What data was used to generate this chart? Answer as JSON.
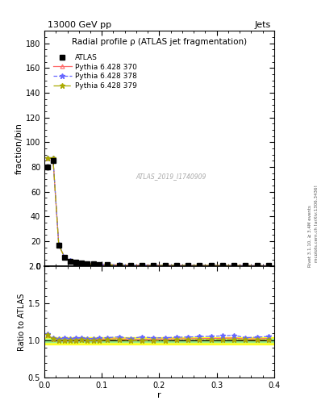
{
  "title_top": "13000 GeV pp",
  "title_top_right": "Jets",
  "title_main": "Radial profile ρ (ATLAS jet fragmentation)",
  "watermark": "ATLAS_2019_I1740909",
  "right_label": "mcplots.cern.ch [arXiv:1306.3436]",
  "right_label2": "Rivet 3.1.10, ≥ 3.4M events",
  "ylabel_main": "fraction/bin",
  "ylabel_ratio": "Ratio to ATLAS",
  "xlabel": "r",
  "xlim": [
    0.0,
    0.4
  ],
  "ylim_main": [
    0,
    190
  ],
  "ylim_ratio": [
    0.5,
    2.0
  ],
  "r_values": [
    0.005,
    0.015,
    0.025,
    0.035,
    0.045,
    0.055,
    0.065,
    0.075,
    0.085,
    0.095,
    0.11,
    0.13,
    0.15,
    0.17,
    0.19,
    0.21,
    0.23,
    0.25,
    0.27,
    0.29,
    0.31,
    0.33,
    0.35,
    0.37,
    0.39
  ],
  "atlas_values": [
    80,
    85,
    17,
    7,
    4,
    3,
    2.2,
    1.8,
    1.5,
    1.2,
    1.0,
    0.8,
    0.7,
    0.6,
    0.55,
    0.5,
    0.45,
    0.42,
    0.38,
    0.35,
    0.32,
    0.28,
    0.25,
    0.22,
    0.18
  ],
  "atlas_errors": [
    2.5,
    2.5,
    0.8,
    0.4,
    0.25,
    0.18,
    0.12,
    0.1,
    0.09,
    0.08,
    0.07,
    0.06,
    0.055,
    0.05,
    0.045,
    0.04,
    0.038,
    0.035,
    0.032,
    0.03,
    0.028,
    0.025,
    0.022,
    0.02,
    0.016
  ],
  "pythia370_values": [
    87,
    87,
    17.2,
    7.1,
    4.05,
    3.05,
    2.25,
    1.82,
    1.52,
    1.22,
    1.02,
    0.82,
    0.71,
    0.61,
    0.56,
    0.51,
    0.46,
    0.43,
    0.39,
    0.36,
    0.33,
    0.29,
    0.255,
    0.225,
    0.185
  ],
  "pythia378_values": [
    87.5,
    87.5,
    17.4,
    7.2,
    4.1,
    3.1,
    2.28,
    1.85,
    1.54,
    1.24,
    1.04,
    0.84,
    0.72,
    0.63,
    0.57,
    0.52,
    0.47,
    0.44,
    0.4,
    0.37,
    0.34,
    0.3,
    0.26,
    0.23,
    0.19
  ],
  "pythia379_values": [
    87,
    87,
    17.1,
    7.05,
    4.02,
    3.02,
    2.23,
    1.8,
    1.5,
    1.2,
    1.01,
    0.81,
    0.7,
    0.6,
    0.55,
    0.5,
    0.455,
    0.425,
    0.385,
    0.355,
    0.325,
    0.285,
    0.252,
    0.222,
    0.182
  ],
  "ratio370": [
    1.08,
    1.02,
    1.01,
    1.01,
    1.01,
    1.015,
    1.023,
    1.011,
    1.013,
    1.017,
    1.02,
    1.025,
    1.014,
    1.017,
    1.018,
    1.02,
    1.022,
    1.024,
    1.026,
    1.029,
    1.031,
    1.036,
    1.02,
    1.023,
    1.028
  ],
  "ratio378": [
    1.09,
    1.03,
    1.02,
    1.03,
    1.025,
    1.033,
    1.036,
    1.028,
    1.027,
    1.033,
    1.04,
    1.05,
    1.029,
    1.05,
    1.036,
    1.04,
    1.044,
    1.048,
    1.053,
    1.057,
    1.063,
    1.071,
    1.04,
    1.045,
    1.056
  ],
  "ratio379": [
    1.08,
    1.02,
    1.006,
    1.007,
    1.005,
    1.007,
    1.014,
    1.0,
    1.0,
    1.0,
    1.01,
    1.013,
    1.0,
    1.0,
    1.0,
    1.0,
    1.011,
    1.012,
    1.013,
    1.014,
    1.016,
    1.018,
    1.008,
    1.009,
    1.011
  ],
  "atlas_band_yellow": 0.05,
  "atlas_band_green": 0.02,
  "color_atlas": "#000000",
  "color_370": "#ff6666",
  "color_378": "#6666ff",
  "color_379": "#aaaa00",
  "bg_color": "#ffffff"
}
